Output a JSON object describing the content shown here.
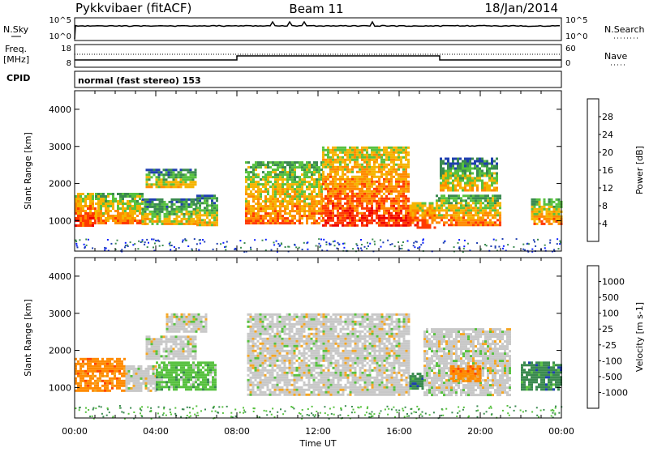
{
  "header": {
    "title": "Pykkvibaer (fitACF)",
    "beam": "Beam 11",
    "date": "18/Jan/2014"
  },
  "top_panels": {
    "nsky_label": "N.Sky",
    "nsearch_label": "N.Search",
    "freq_label_1": "Freq.",
    "freq_label_2": "[MHz]",
    "nave_label": "Nave",
    "cpid_label": "CPID",
    "nsky_ticks": [
      "10^5",
      "10^0"
    ],
    "nsearch_ticks": [
      "10^5",
      "10^0"
    ],
    "freq_ticks": [
      "18",
      "8"
    ],
    "nave_ticks": [
      "60",
      "0"
    ],
    "cpid_text": "normal (fast stereo) 153"
  },
  "chart_data": [
    {
      "type": "heatmap",
      "name": "power",
      "xlabel": "Time UT",
      "ylabel": "Slant Range [km]",
      "x_ticks": [
        "00:00",
        "04:00",
        "08:00",
        "12:00",
        "16:00",
        "20:00",
        "00:00"
      ],
      "x_range_hours": [
        0,
        24
      ],
      "ylim": [
        180,
        4500
      ],
      "y_ticks": [
        1000,
        2000,
        3000,
        4000
      ],
      "colorbar_label": "Power [dB]",
      "colorbar_ticks": [
        "28",
        "24",
        "20",
        "16",
        "12",
        "8",
        "4"
      ],
      "colors": [
        "#0a1fff",
        "#1f3fb0",
        "#3a8a4f",
        "#57c13f",
        "#f5b400",
        "#ff8a00",
        "#ff3a00",
        "#ee0000"
      ],
      "regions": [
        {
          "t0": 0.0,
          "t1": 1.0,
          "r0": 850,
          "r1": 1750,
          "level": 5
        },
        {
          "t0": 1.0,
          "t1": 3.3,
          "r0": 900,
          "r1": 1750,
          "level": 4
        },
        {
          "t0": 3.3,
          "t1": 6.0,
          "r0": 900,
          "r1": 1600,
          "level": 3
        },
        {
          "t0": 6.0,
          "t1": 7.0,
          "r0": 850,
          "r1": 1700,
          "level": 3
        },
        {
          "t0": 3.5,
          "t1": 6.0,
          "r0": 1900,
          "r1": 2400,
          "level": 3
        },
        {
          "t0": 8.4,
          "t1": 12.2,
          "r0": 900,
          "r1": 2600,
          "level": 4
        },
        {
          "t0": 12.2,
          "t1": 16.5,
          "r0": 850,
          "r1": 3000,
          "level": 5
        },
        {
          "t0": 16.5,
          "t1": 17.8,
          "r0": 800,
          "r1": 1500,
          "level": 5
        },
        {
          "t0": 17.8,
          "t1": 21.0,
          "r0": 900,
          "r1": 1700,
          "level": 4
        },
        {
          "t0": 18.0,
          "t1": 20.8,
          "r0": 1800,
          "r1": 2700,
          "level": 3
        },
        {
          "t0": 22.5,
          "t1": 24.0,
          "r0": 900,
          "r1": 1600,
          "level": 4
        }
      ]
    },
    {
      "type": "heatmap",
      "name": "velocity",
      "xlabel": "Time UT",
      "ylabel": "Slant Range [km]",
      "x_ticks": [
        "00:00",
        "04:00",
        "08:00",
        "12:00",
        "16:00",
        "20:00",
        "00:00"
      ],
      "x_range_hours": [
        0,
        24
      ],
      "ylim": [
        180,
        4500
      ],
      "y_ticks": [
        1000,
        2000,
        3000,
        4000
      ],
      "colorbar_label": "Velocity [m s-1]",
      "colorbar_ticks": [
        "1000",
        "500",
        "100",
        "25",
        "-25",
        "-100",
        "-500",
        "-1000"
      ],
      "colors": [
        "#ee0000",
        "#ff4400",
        "#ff8a00",
        "#f5a623",
        "#c8c8c8",
        "#57c13f",
        "#3a8a4f",
        "#1f3fb0",
        "#0a1fff"
      ],
      "regions": [
        {
          "t0": 0.0,
          "t1": 2.5,
          "r0": 900,
          "r1": 1800,
          "level": 2
        },
        {
          "t0": 2.5,
          "t1": 4.0,
          "r0": 900,
          "r1": 1600,
          "level": 4
        },
        {
          "t0": 3.5,
          "t1": 6.0,
          "r0": 1800,
          "r1": 2400,
          "level": 4
        },
        {
          "t0": 4.0,
          "t1": 7.0,
          "r0": 950,
          "r1": 1700,
          "level": 5
        },
        {
          "t0": 4.5,
          "t1": 6.5,
          "r0": 2500,
          "r1": 3000,
          "level": 4
        },
        {
          "t0": 8.5,
          "t1": 16.5,
          "r0": 800,
          "r1": 3000,
          "level": 4
        },
        {
          "t0": 16.5,
          "t1": 17.2,
          "r0": 950,
          "r1": 1400,
          "level": 6
        },
        {
          "t0": 17.2,
          "t1": 21.5,
          "r0": 800,
          "r1": 2600,
          "level": 4
        },
        {
          "t0": 18.5,
          "t1": 20.0,
          "r0": 1200,
          "r1": 1600,
          "level": 2
        },
        {
          "t0": 22.0,
          "t1": 24.0,
          "r0": 950,
          "r1": 1700,
          "level": 6
        }
      ]
    }
  ]
}
